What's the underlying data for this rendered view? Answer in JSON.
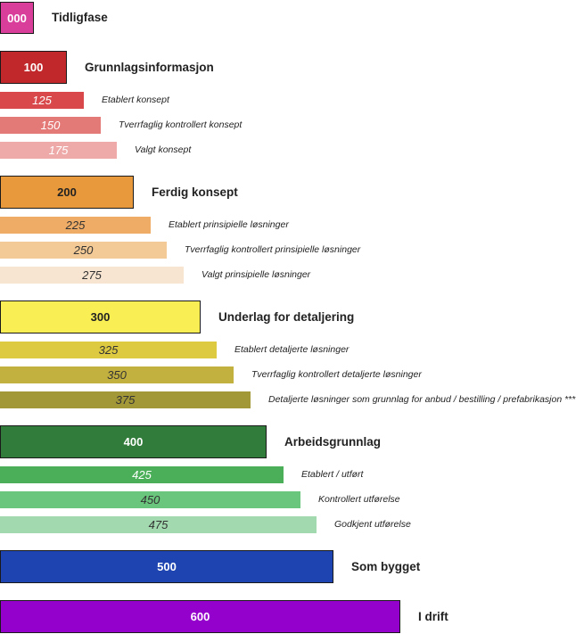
{
  "levels": [
    {
      "code": "000",
      "label": "Tidligfase",
      "kind": "main",
      "color": "#d93f9a",
      "text_color": "#ffffff"
    },
    {
      "code": "100",
      "label": "Grunnlagsinformasjon",
      "kind": "main",
      "color": "#c0282b",
      "text_color": "#ffffff"
    },
    {
      "code": "125",
      "label": "Etablert konsept",
      "kind": "sub",
      "color": "#d9484b",
      "text_color": "#ffffff"
    },
    {
      "code": "150",
      "label": "Tverrfaglig kontrollert konsept",
      "kind": "sub",
      "color": "#e47a78",
      "text_color": "#ffffff"
    },
    {
      "code": "175",
      "label": "Valgt konsept",
      "kind": "sub",
      "color": "#eeaaa9",
      "text_color": "#ffffff"
    },
    {
      "code": "200",
      "label": "Ferdig konsept",
      "kind": "main",
      "color": "#e8993b",
      "text_color": "#222222"
    },
    {
      "code": "225",
      "label": "Etablert prinsipielle løsninger",
      "kind": "sub",
      "color": "#eeac66",
      "text_color": "#333333"
    },
    {
      "code": "250",
      "label": "Tverrfaglig kontrollert prinsipielle løsninger",
      "kind": "sub",
      "color": "#f3c995",
      "text_color": "#333333"
    },
    {
      "code": "275",
      "label": "Valgt prinsipielle løsninger",
      "kind": "sub",
      "color": "#f7e5d2",
      "text_color": "#333333"
    },
    {
      "code": "300",
      "label": "Underlag for detaljering",
      "kind": "main",
      "color": "#f9ef55",
      "text_color": "#222222"
    },
    {
      "code": "325",
      "label": "Etablert detaljerte løsninger",
      "kind": "sub",
      "color": "#ddca41",
      "text_color": "#333333"
    },
    {
      "code": "350",
      "label": "Tverrfaglig kontrollert detaljerte løsninger",
      "kind": "sub",
      "color": "#c2b03f",
      "text_color": "#333333"
    },
    {
      "code": "375",
      "label": "Detaljerte løsninger som grunnlag for anbud / bestilling / prefabrikasjon ***",
      "kind": "sub",
      "color": "#a39838",
      "text_color": "#333333"
    },
    {
      "code": "400",
      "label": "Arbeidsgrunnlag",
      "kind": "main",
      "color": "#317c3a",
      "text_color": "#ffffff"
    },
    {
      "code": "425",
      "label": "Etablert / utført",
      "kind": "sub",
      "color": "#4aaf58",
      "text_color": "#ffffff"
    },
    {
      "code": "450",
      "label": "Kontrollert utførelse",
      "kind": "sub",
      "color": "#6bc67d",
      "text_color": "#333333"
    },
    {
      "code": "475",
      "label": "Godkjent utførelse",
      "kind": "sub",
      "color": "#a2d9ae",
      "text_color": "#333333"
    },
    {
      "code": "500",
      "label": "Som bygget",
      "kind": "main",
      "color": "#1d44b0",
      "text_color": "#ffffff"
    },
    {
      "code": "600",
      "label": "I drift",
      "kind": "main",
      "color": "#9400cc",
      "text_color": "#ffffff"
    }
  ]
}
